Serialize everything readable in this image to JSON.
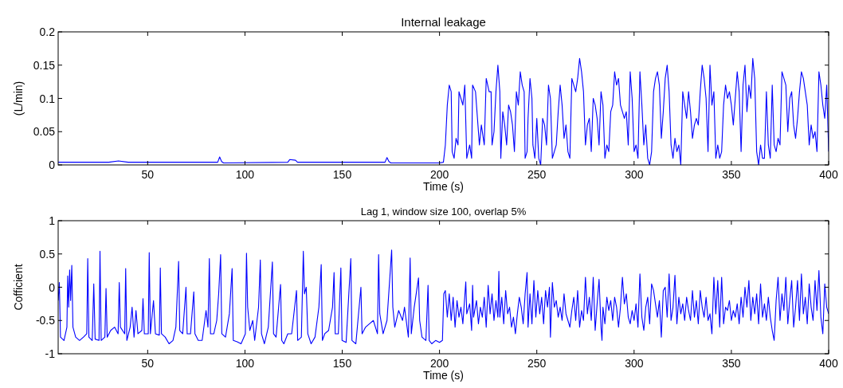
{
  "chart_data": [
    {
      "type": "line",
      "title": "Internal leakage",
      "xlabel": "Time (s)",
      "ylabel": "(L/min)",
      "xlim": [
        4,
        400
      ],
      "xticks": [
        50,
        100,
        150,
        200,
        250,
        300,
        350,
        400
      ],
      "ylim": [
        0,
        0.2
      ],
      "yticks": [
        0,
        0.05,
        0.1,
        0.15,
        0.2
      ],
      "series": [
        {
          "color": "#0000ff",
          "x": [
            4,
            30,
            35,
            40,
            86,
            87,
            88,
            89,
            122,
            123,
            126,
            127,
            172,
            173,
            174,
            175,
            200,
            202,
            203,
            204,
            205,
            206,
            206.5,
            207.5,
            208.5,
            209.5,
            210,
            211,
            212,
            213,
            214,
            215.5,
            216.5,
            217,
            218.5,
            219.5,
            220.5,
            221.5,
            223,
            224,
            225.5,
            226.5,
            227,
            228,
            229,
            230,
            231,
            231.5,
            232.5,
            233.5,
            234.5,
            235.5,
            236.5,
            237.5,
            238.5,
            239.5,
            240.5,
            241.5,
            242.5,
            243.5,
            244,
            245,
            245.5,
            246.5,
            247.5,
            248,
            249,
            250,
            251,
            252,
            253,
            254,
            255,
            256,
            257,
            258,
            259,
            260,
            261,
            262,
            263,
            264,
            265,
            266,
            267,
            268,
            269,
            270,
            271,
            272,
            273,
            274,
            275,
            276,
            277,
            278,
            279,
            280,
            281,
            282,
            283,
            284,
            285,
            286,
            287,
            288,
            289,
            290,
            291,
            292,
            293,
            294,
            295,
            296,
            297,
            298,
            299,
            300,
            301,
            302,
            303,
            304,
            305,
            306,
            307,
            308,
            309,
            310,
            311,
            312,
            313,
            314,
            315,
            316,
            317,
            318,
            319,
            320,
            321,
            322,
            323,
            324,
            325,
            326,
            327,
            328,
            329,
            330,
            331,
            332,
            333,
            334,
            335,
            336,
            337,
            338,
            339,
            340,
            341,
            342,
            343,
            344,
            345,
            346,
            347,
            348,
            349,
            350,
            351,
            352,
            353,
            354,
            355,
            356,
            357,
            358,
            359,
            360,
            361,
            362,
            363,
            364,
            365,
            366,
            367,
            368,
            369,
            370,
            371,
            372,
            373,
            374,
            375,
            376,
            377,
            378,
            379,
            380,
            381,
            382,
            383,
            384,
            385,
            386,
            387,
            388,
            389,
            390,
            391,
            392,
            393,
            394,
            395,
            396,
            397,
            398,
            399,
            400
          ],
          "values": [
            0.004,
            0.004,
            0.006,
            0.004,
            0.004,
            0.012,
            0.005,
            0.003,
            0.004,
            0.008,
            0.007,
            0.004,
            0.004,
            0.011,
            0.005,
            0.003,
            0.003,
            0.004,
            0.03,
            0.09,
            0.12,
            0.11,
            0.02,
            0.01,
            0.04,
            0.03,
            0.11,
            0.1,
            0.09,
            0.12,
            0.01,
            0.03,
            0.01,
            0.12,
            0.11,
            0.07,
            0.03,
            0.06,
            0.03,
            0.13,
            0.11,
            0.11,
            0.03,
            0.05,
            0.11,
            0.15,
            0.11,
            0.01,
            0.08,
            0.06,
            0.03,
            0.09,
            0.08,
            0.06,
            0.02,
            0.11,
            0.09,
            0.14,
            0.12,
            0.11,
            0.01,
            0.02,
            0.07,
            0.13,
            0.1,
            0.03,
            0.01,
            0.07,
            0.01,
            0,
            0.07,
            0.06,
            0.03,
            0.12,
            0.1,
            0.01,
            0.02,
            0.03,
            0.08,
            0.12,
            0.09,
            0.04,
            0.06,
            0.02,
            0.01,
            0.13,
            0.12,
            0.11,
            0.13,
            0.16,
            0.14,
            0.11,
            0.03,
            0.06,
            0.07,
            0.02,
            0.1,
            0.09,
            0.07,
            0.03,
            0.11,
            0.09,
            0.01,
            0.03,
            0.02,
            0.08,
            0.09,
            0.14,
            0.12,
            0.13,
            0.09,
            0.08,
            0.07,
            0.08,
            0.03,
            0.14,
            0.1,
            0.02,
            0.03,
            0.01,
            0.14,
            0.09,
            0.03,
            0.06,
            0.01,
            0,
            0.02,
            0.11,
            0.13,
            0.14,
            0.12,
            0.04,
            0.08,
            0.13,
            0.15,
            0.11,
            0.03,
            0.01,
            0.04,
            0.02,
            0.03,
            0,
            0.11,
            0.09,
            0.07,
            0.11,
            0.08,
            0.04,
            0.06,
            0.07,
            0.06,
            0.11,
            0.15,
            0.13,
            0.1,
            0.02,
            0.15,
            0.09,
            0.11,
            0.01,
            0.03,
            0.01,
            0.02,
            0.09,
            0.12,
            0.1,
            0.11,
            0.09,
            0.06,
            0.1,
            0.14,
            0.11,
            0.02,
            0.12,
            0.15,
            0.08,
            0.12,
            0.1,
            0.16,
            0.13,
            0.02,
            0,
            0.03,
            0.01,
            0.01,
            0.11,
            0.03,
            0.01,
            0.12,
            0.03,
            0.02,
            0.04,
            0.03,
            0.14,
            0.13,
            0.12,
            0.05,
            0.1,
            0.11,
            0.06,
            0.04,
            0.07,
            0.11,
            0.14,
            0.13,
            0.11,
            0.09,
            0.03,
            0.06,
            0.04,
            0.05,
            0.02,
            0.14,
            0.12,
            0.09,
            0.07,
            0.12,
            0.02
          ]
        }
      ]
    },
    {
      "type": "line",
      "title": "Lag 1, window size 100, overlap 5%",
      "xlabel": "Time (s)",
      "ylabel": "Cofficient",
      "xlim": [
        4,
        400
      ],
      "xticks": [
        50,
        100,
        150,
        200,
        250,
        300,
        350,
        400
      ],
      "ylim": [
        -1,
        1
      ],
      "yticks": [
        -1,
        -0.5,
        0,
        0.5,
        1
      ],
      "series": [
        {
          "color": "#0000ff",
          "x": [
            4,
            4.6,
            5.2,
            7,
            8.5,
            8.9,
            9.4,
            9.9,
            10.4,
            11,
            11.6,
            13,
            15,
            17,
            18.7,
            19.2,
            19.8,
            21.5,
            22.3,
            23,
            25,
            25.5,
            26.1,
            28,
            28.6,
            29.2,
            31,
            33,
            34.8,
            35.4,
            36,
            38.2,
            38.7,
            39.3,
            41,
            42,
            43,
            44,
            45,
            47,
            47.6,
            48.3,
            50.3,
            50.8,
            51.4,
            53,
            54,
            56,
            56.5,
            57.1,
            59,
            61,
            63,
            64.5,
            65.9,
            66.5,
            68,
            69.7,
            70.3,
            72,
            73.7,
            74.3,
            76,
            78,
            80,
            81,
            81.7,
            82.3,
            84,
            85.5,
            86.5,
            87.5,
            88.1,
            90,
            92,
            93.4,
            94,
            96,
            98,
            100.2,
            100.8,
            101.4,
            102.5,
            104,
            105,
            107,
            107.9,
            108.5,
            110,
            112,
            114.1,
            114.7,
            116,
            118.3,
            118.9,
            120,
            122,
            124,
            126.5,
            127.1,
            129,
            130,
            130.6,
            131.5,
            132.3,
            134,
            136,
            138,
            139.2,
            139.8,
            141,
            143,
            145,
            145.8,
            146.4,
            148,
            149.3,
            149.9,
            152,
            154.4,
            155,
            157,
            159.6,
            160.2,
            162,
            164,
            166,
            168.1,
            168.7,
            169.3,
            171,
            173,
            175.4,
            176,
            177,
            179,
            181,
            182,
            184,
            184.9,
            185.5,
            187,
            189.2,
            189.8,
            191,
            193,
            194.1,
            194.7,
            196,
            198,
            200,
            201.5,
            202.2,
            203,
            204,
            205,
            206,
            207,
            208,
            209,
            210,
            211,
            212,
            213.5,
            214,
            215.5,
            216.5,
            217,
            217.5,
            219,
            220,
            221,
            222,
            223,
            224,
            225,
            226,
            227,
            228,
            229,
            230,
            230.5,
            231,
            232,
            233,
            234,
            235,
            236,
            237,
            238,
            239,
            240,
            241,
            242,
            243,
            244,
            245,
            245.5,
            246.5,
            247.5,
            248.5,
            249.5,
            250.5,
            251.5,
            252.5,
            253.5,
            254.5,
            255.5,
            256.5,
            257,
            258,
            259,
            260,
            261,
            262,
            263,
            264,
            265,
            266,
            267,
            268,
            269,
            270,
            271,
            272,
            273,
            274,
            275,
            276,
            277,
            278,
            279,
            280,
            281,
            282,
            283,
            283.5,
            284,
            285,
            286,
            287,
            288,
            289,
            290,
            291,
            292,
            293,
            294,
            295,
            296,
            297,
            298,
            299,
            300,
            301,
            302,
            303,
            304,
            305,
            306,
            307,
            308,
            309,
            310,
            311,
            312,
            313,
            314,
            315,
            316,
            317,
            318,
            319,
            320,
            321,
            322,
            323,
            324,
            325,
            326,
            327,
            328,
            329,
            330,
            331,
            332,
            333,
            334,
            335,
            336,
            337,
            338,
            339,
            340,
            341,
            342,
            343,
            344,
            345,
            346,
            347,
            348,
            349,
            350,
            351,
            352,
            353,
            354,
            355,
            356,
            357,
            358,
            359,
            360,
            361,
            362,
            363,
            364,
            365,
            366,
            367,
            368,
            369,
            370,
            371,
            372,
            373,
            374,
            375,
            376,
            377,
            378,
            379,
            380,
            381,
            382,
            383,
            384,
            385,
            386,
            387,
            388,
            389,
            390,
            391,
            392,
            393,
            394,
            395,
            396,
            397,
            398,
            399,
            400
          ],
          "values": [
            -0.2,
            0.07,
            -0.75,
            -0.8,
            -0.6,
            0.17,
            -0.3,
            0.26,
            -0.2,
            0.33,
            -0.6,
            -0.75,
            -0.8,
            -0.75,
            -0.7,
            0.43,
            -0.75,
            -0.8,
            0.05,
            -0.78,
            -0.8,
            0.54,
            -0.8,
            -0.75,
            -0.02,
            -0.75,
            -0.65,
            -0.6,
            -0.7,
            0.07,
            -0.6,
            -0.7,
            0.28,
            -0.8,
            -0.6,
            -0.3,
            -0.75,
            -0.35,
            -0.7,
            -0.65,
            -0.17,
            -0.7,
            -0.7,
            0.52,
            -0.7,
            -0.2,
            -0.7,
            -0.72,
            0.29,
            -0.7,
            -0.75,
            -0.85,
            -0.8,
            -0.6,
            0.39,
            -0.65,
            -0.7,
            0,
            -0.7,
            -0.7,
            -0.07,
            -0.7,
            -0.8,
            -0.8,
            -0.35,
            -0.6,
            0.43,
            -0.7,
            -0.7,
            -0.5,
            -0.1,
            0.49,
            -0.7,
            -0.75,
            -0.4,
            0.28,
            -0.8,
            -0.82,
            -0.85,
            -0.7,
            0.51,
            -0.3,
            -0.65,
            -0.5,
            -0.8,
            -0.3,
            0.41,
            -0.7,
            -0.85,
            -0.6,
            0.38,
            -0.7,
            -0.75,
            0.04,
            -0.8,
            -0.85,
            -0.7,
            -0.7,
            -0.05,
            -0.8,
            -0.75,
            0.54,
            -0.1,
            0,
            -0.7,
            -0.85,
            -0.75,
            -0.3,
            0.34,
            -0.8,
            -0.7,
            -0.65,
            -0.3,
            0.22,
            -0.7,
            -0.7,
            0.29,
            -0.8,
            -0.83,
            0.43,
            -0.8,
            -0.85,
            0,
            -0.7,
            -0.6,
            -0.55,
            -0.5,
            -0.7,
            0.49,
            -0.4,
            -0.7,
            -0.5,
            0.56,
            -0.3,
            -0.6,
            -0.35,
            -0.5,
            -0.3,
            -0.75,
            0.44,
            -0.7,
            -0.3,
            0.14,
            -0.5,
            -0.75,
            -0.8,
            0.03,
            -0.8,
            -0.85,
            -0.8,
            -0.83,
            -0.8,
            -0.1,
            -0.05,
            -0.45,
            -0.1,
            -0.5,
            -0.15,
            -0.6,
            -0.2,
            -0.45,
            -0.3,
            -0.55,
            0.08,
            -0.4,
            -0.25,
            -0.65,
            0.03,
            -0.45,
            -0.2,
            -0.55,
            -0.3,
            -0.45,
            -0.15,
            -0.6,
            0.03,
            -0.4,
            -0.1,
            -0.5,
            -0.2,
            -0.45,
            0.24,
            -0.45,
            -0.15,
            -0.55,
            -0.05,
            -0.4,
            -0.3,
            -0.6,
            -0.45,
            -0.7,
            -0.4,
            -0.15,
            -0.3,
            -0.55,
            -0.1,
            0.22,
            -0.6,
            -0.1,
            -0.55,
            0.1,
            -0.45,
            -0.05,
            -0.4,
            -0.15,
            -0.55,
            -0.05,
            -0.3,
            0,
            -0.75,
            0.07,
            -0.3,
            -0.2,
            -0.45,
            -0.3,
            -0.5,
            -0.1,
            -0.4,
            -0.5,
            -0.6,
            -0.35,
            -0.15,
            -0.5,
            -0.05,
            -0.6,
            -0.35,
            -0.5,
            0.15,
            -0.4,
            -0.15,
            -0.5,
            0.15,
            -0.65,
            -0.25,
            0.12,
            -0.6,
            -0.8,
            -0.3,
            -0.55,
            -0.15,
            -0.35,
            -0.2,
            -0.5,
            -0.15,
            -0.3,
            -0.6,
            -0.3,
            0.15,
            -0.25,
            -0.1,
            -0.45,
            -0.55,
            -0.35,
            -0.5,
            -0.25,
            -0.6,
            0.2,
            -0.45,
            -0.65,
            -0.3,
            -0.15,
            -0.55,
            0.05,
            -0.05,
            -0.25,
            -0.45,
            -0.2,
            -0.75,
            -0.05,
            0,
            -0.45,
            0.2,
            -0.5,
            -0.3,
            0.18,
            -0.55,
            -0.15,
            -0.4,
            -0.25,
            -0.5,
            -0.15,
            -0.35,
            -0.5,
            -0.05,
            -0.45,
            -0.2,
            -0.55,
            -0.05,
            -0.3,
            -0.45,
            -0.15,
            -0.5,
            -0.4,
            -0.7,
            0.15,
            -0.4,
            0.1,
            -0.6,
            0.15,
            -0.55,
            -0.3,
            -0.35,
            -0.2,
            -0.5,
            -0.35,
            -0.45,
            -0.25,
            -0.55,
            -0.15,
            -0.45,
            0,
            -0.3,
            0.1,
            -0.5,
            -0.15,
            -0.4,
            -0.1,
            -0.55,
            0.05,
            -0.45,
            -0.25,
            -0.5,
            -0.15,
            -0.45,
            -0.65,
            -0.8,
            -0.2,
            0.15,
            -0.5,
            -0.1,
            -0.35,
            0.15,
            -0.55,
            -0.2,
            0.1,
            -0.6,
            -0.3,
            0.1,
            -0.5,
            0.2,
            -0.4,
            -0.15,
            -0.55,
            0.05,
            -0.3,
            -0.5,
            0.1,
            -0.35,
            0.25,
            -0.45,
            -0.7,
            0.05,
            -0.3,
            -0.4
          ]
        }
      ]
    }
  ]
}
